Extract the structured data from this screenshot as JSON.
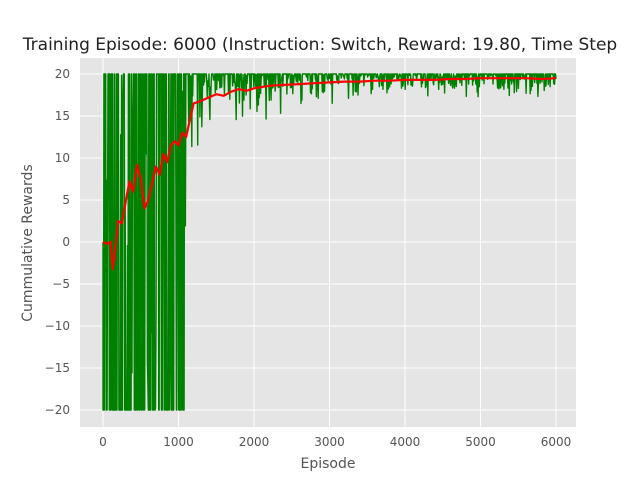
{
  "chart_data": {
    "type": "line",
    "title": "Training Episode: 6000 (Instruction: Switch, Reward: 19.80, Time Step",
    "xlabel": "Episode",
    "ylabel": "Cummulative Rewards",
    "xlim": [
      -300,
      6200
    ],
    "ylim": [
      -22,
      21.5
    ],
    "xticks": [
      0,
      1000,
      2000,
      3000,
      4000,
      5000,
      6000
    ],
    "yticks": [
      -20,
      -15,
      -10,
      -5,
      0,
      5,
      10,
      15,
      20
    ],
    "grid": true,
    "background": "#e5e5e5",
    "series": [
      {
        "color": "#008000",
        "description_points": [
          {
            "x": 0,
            "min": -20,
            "max": 20
          },
          {
            "x": 500,
            "min": -20,
            "max": 20
          },
          {
            "x": 1000,
            "min": -20,
            "max": 20
          },
          {
            "x": 1080,
            "min": -20,
            "max": 20
          },
          {
            "x": 1150,
            "min": 0.5,
            "max": 20
          },
          {
            "x": 1500,
            "min": 11,
            "max": 20
          },
          {
            "x": 2000,
            "min": 13,
            "max": 20
          },
          {
            "x": 2500,
            "min": 14,
            "max": 20
          },
          {
            "x": 3000,
            "min": 16,
            "max": 20
          },
          {
            "x": 4000,
            "min": 17,
            "max": 20
          },
          {
            "x": 5000,
            "min": 17,
            "max": 20
          },
          {
            "x": 5500,
            "min": 15,
            "max": 20
          },
          {
            "x": 6000,
            "min": 16,
            "max": 20
          }
        ]
      },
      {
        "color": "#ff0000",
        "x": [
          0,
          50,
          100,
          130,
          160,
          200,
          250,
          300,
          350,
          400,
          450,
          500,
          550,
          600,
          650,
          700,
          750,
          800,
          850,
          900,
          950,
          1000,
          1050,
          1100,
          1150,
          1200,
          1300,
          1400,
          1500,
          1600,
          1700,
          1800,
          1900,
          2000,
          2200,
          2400,
          2600,
          2800,
          3000,
          3200,
          3400,
          3600,
          3800,
          4000,
          4200,
          4400,
          4600,
          4800,
          5000,
          5200,
          5400,
          5600,
          5800,
          6000
        ],
        "values": [
          0,
          -0.2,
          0,
          -3.2,
          -1,
          2.5,
          2.2,
          4.8,
          7.2,
          6.0,
          9.2,
          7.5,
          4.0,
          5.0,
          7.0,
          9.0,
          8.0,
          10.5,
          9.5,
          11.5,
          12.0,
          11.5,
          13.0,
          12.5,
          14.5,
          16.5,
          16.8,
          17.2,
          17.6,
          17.4,
          17.9,
          18.2,
          18.0,
          18.3,
          18.6,
          18.7,
          18.8,
          18.9,
          19.0,
          19.1,
          19.1,
          19.2,
          19.2,
          19.3,
          19.3,
          19.3,
          19.4,
          19.4,
          19.5,
          19.5,
          19.5,
          19.5,
          19.4,
          19.5
        ]
      }
    ]
  }
}
